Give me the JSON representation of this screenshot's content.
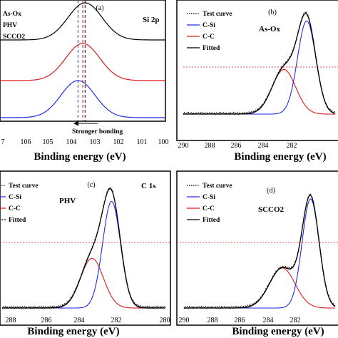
{
  "colors": {
    "black": "#000000",
    "red": "#e0191b",
    "blue": "#1f2ee0",
    "axis": "#000000"
  },
  "chart_data": [
    {
      "panel": "(a)",
      "type": "line",
      "annotation": "Si 2p",
      "xlabel": "Binding energy (eV)",
      "xlim": [
        107,
        100
      ],
      "x_ticks": [
        "7",
        "106",
        "105",
        "104",
        "103",
        "102",
        "101",
        "100"
      ],
      "legend": [
        "As-Ox",
        "PHV",
        "SCCO2"
      ],
      "arrow_label": "Stronger bonding",
      "reference_lines": [
        {
          "x": 103.7,
          "color": "blue"
        },
        {
          "x": 103.5,
          "color": "red"
        },
        {
          "x": 103.4,
          "color": "black"
        }
      ],
      "series": [
        {
          "name": "As-Ox",
          "color": "black",
          "center": 103.4,
          "peak": 1.0,
          "offset": 2.0
        },
        {
          "name": "PHV",
          "color": "red",
          "center": 103.5,
          "peak": 1.0,
          "offset": 1.0
        },
        {
          "name": "SCCO2",
          "color": "blue",
          "center": 103.7,
          "peak": 1.0,
          "offset": 0.0
        }
      ]
    },
    {
      "panel": "(b)",
      "type": "line",
      "annotation": "As-Ox",
      "xlabel": "Binding energy (eV)",
      "xlim": [
        290,
        282
      ],
      "x_ticks": [
        "290",
        "288",
        "286",
        "284",
        "282"
      ],
      "legend": [
        "Test curve",
        "C-Si",
        "C-C",
        "Fitted"
      ],
      "series": [
        {
          "name": "C-Si",
          "color": "blue",
          "center": 283.5,
          "peak": 0.92
        },
        {
          "name": "C-C",
          "color": "red",
          "center": 284.7,
          "peak": 0.44
        },
        {
          "name": "Fitted",
          "color": "black"
        },
        {
          "name": "Test curve",
          "color": "black",
          "style": "dotted"
        }
      ]
    },
    {
      "panel": "(c)",
      "type": "line",
      "annotation": "PHV",
      "annotation2": "C 1s",
      "xlabel": "Binding energy (eV)",
      "xlim": [
        290,
        280
      ],
      "x_ticks": [
        "288",
        "286",
        "284",
        "282",
        "280"
      ],
      "legend": [
        "Test curve",
        "C-Si",
        "C-C",
        "Fitted"
      ],
      "series": [
        {
          "name": "C-Si",
          "color": "blue",
          "center": 283.3,
          "peak": 0.88
        },
        {
          "name": "C-C",
          "color": "red",
          "center": 284.5,
          "peak": 0.41
        },
        {
          "name": "Fitted",
          "color": "black"
        },
        {
          "name": "Test curve",
          "color": "black",
          "style": "dotted"
        }
      ]
    },
    {
      "panel": "(d)",
      "type": "line",
      "annotation": "SCCO2",
      "xlabel": "Binding energy (eV)",
      "xlim": [
        290,
        282
      ],
      "x_ticks": [
        "290",
        "288",
        "286",
        "284",
        "282"
      ],
      "legend": [
        "Test curve",
        "C-Si",
        "C-C",
        "Fitted"
      ],
      "series": [
        {
          "name": "C-Si",
          "color": "blue",
          "center": 283.3,
          "peak": 0.9
        },
        {
          "name": "C-C",
          "color": "red",
          "center": 284.8,
          "peak": 0.33
        },
        {
          "name": "Fitted",
          "color": "black"
        },
        {
          "name": "Test curve",
          "color": "black",
          "style": "dotted"
        }
      ]
    }
  ]
}
